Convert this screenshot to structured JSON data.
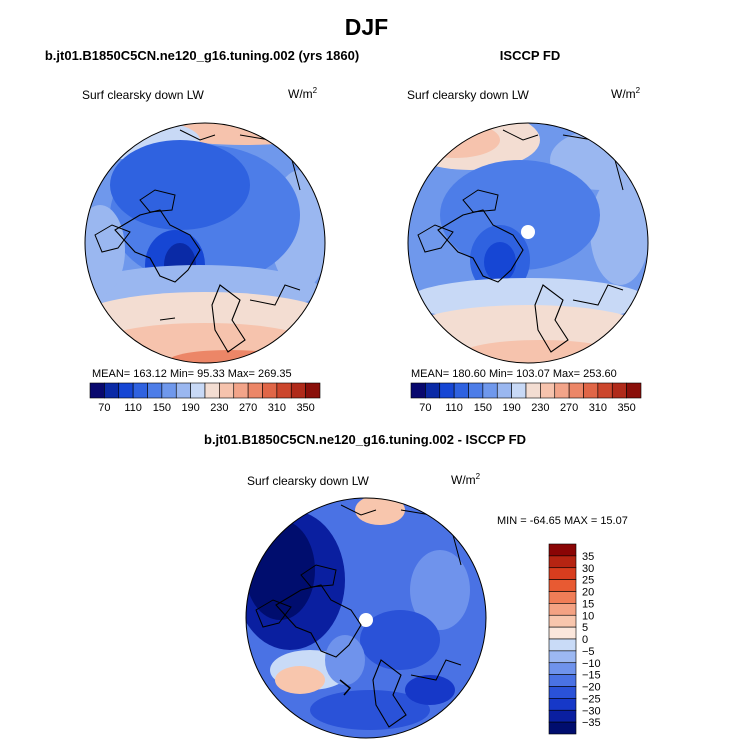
{
  "colors": {
    "absolute_scale": [
      "#08086e",
      "#0a2aa6",
      "#1646d4",
      "#2f62e0",
      "#4d7de8",
      "#6f98ec",
      "#9ab7f0",
      "#c8d9f6",
      "#f3ddd2",
      "#f6c3ad",
      "#f2a489",
      "#ec8667",
      "#e06647",
      "#cc462c",
      "#b02a1a",
      "#8a0f0a"
    ],
    "diff_scale": [
      "#000d6e",
      "#0a1fa0",
      "#1638c8",
      "#2a52d8",
      "#4a72e4",
      "#6f93ec",
      "#9cb8f2",
      "#c9dbf7",
      "#fbe7dc",
      "#f8c6ad",
      "#f4a283",
      "#f07d57",
      "#e85a32",
      "#d83d1e",
      "#b62412",
      "#8a0505"
    ],
    "land_outline": "#000000",
    "missing_value": "#ffffff"
  },
  "title": "DJF",
  "panels": {
    "model": {
      "title": "b.jt01.B1850C5CN.ne120_g16.tuning.002 (yrs 1860)",
      "variable": "Surf clearsky down LW",
      "units": "W/m",
      "units_exp": "2",
      "stats": "MEAN= 163.12  Min=  95.33  Max= 269.35",
      "mean": 163.12,
      "min": 95.33,
      "max": 269.35
    },
    "obs": {
      "title": "ISCCP FD",
      "variable": "Surf clearsky down LW",
      "units": "W/m",
      "units_exp": "2",
      "stats": "MEAN= 180.60  Min= 103.07  Max= 253.60",
      "mean": 180.6,
      "min": 103.07,
      "max": 253.6
    },
    "diff": {
      "title": "b.jt01.B1850C5CN.ne120_g16.tuning.002 - ISCCP FD",
      "variable": "Surf clearsky down LW",
      "units": "W/m",
      "units_exp": "2",
      "stats": "MIN = -64.65 MAX =  15.07",
      "min": -64.65,
      "max": 15.07
    }
  },
  "chart_data": [
    {
      "type": "heatmap",
      "projection": "north polar stereographic",
      "title": "b.jt01.B1850C5CN.ne120_g16.tuning.002 (yrs 1860)",
      "variable": "Surf clearsky down LW",
      "units": "W/m2",
      "stats": {
        "mean": 163.12,
        "min": 95.33,
        "max": 269.35
      },
      "colorbar_levels": [
        70,
        110,
        150,
        190,
        230,
        270,
        310,
        350
      ],
      "colorbar_labels": [
        "70",
        "110",
        "150",
        "190",
        "230",
        "270",
        "310",
        "350"
      ]
    },
    {
      "type": "heatmap",
      "projection": "north polar stereographic",
      "title": "ISCCP FD",
      "variable": "Surf clearsky down LW",
      "units": "W/m2",
      "stats": {
        "mean": 180.6,
        "min": 103.07,
        "max": 253.6
      },
      "colorbar_levels": [
        70,
        110,
        150,
        190,
        230,
        270,
        310,
        350
      ],
      "colorbar_labels": [
        "70",
        "110",
        "150",
        "190",
        "230",
        "270",
        "310",
        "350"
      ]
    },
    {
      "type": "heatmap",
      "projection": "north polar stereographic",
      "title": "b.jt01.B1850C5CN.ne120_g16.tuning.002 - ISCCP FD",
      "variable": "Surf clearsky down LW",
      "units": "W/m2",
      "stats": {
        "min": -64.65,
        "max": 15.07
      },
      "colorbar_levels": [
        35,
        30,
        25,
        20,
        15,
        10,
        5,
        0,
        -5,
        -10,
        -15,
        -20,
        -25,
        -30,
        -35
      ],
      "colorbar_labels": [
        "35",
        "30",
        "25",
        "20",
        "15",
        "10",
        "5",
        "0",
        "−5",
        "−10",
        "−15",
        "−20",
        "−25",
        "−30",
        "−35"
      ]
    }
  ]
}
